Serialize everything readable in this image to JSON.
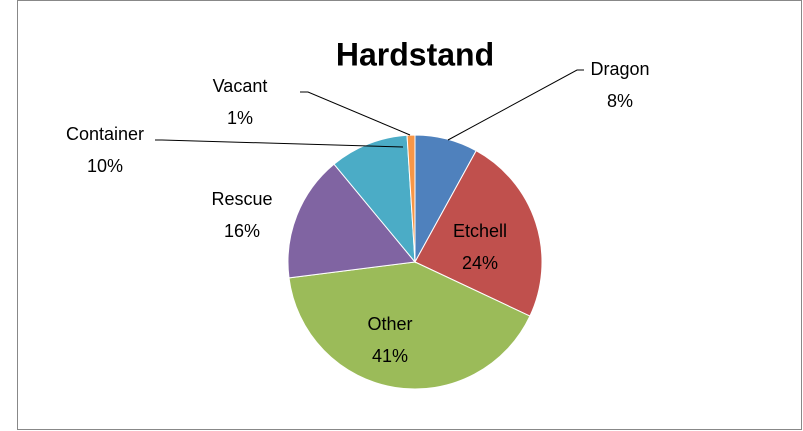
{
  "chart_data": {
    "type": "pie",
    "title": "Hardstand",
    "categories": [
      "Dragon",
      "Etchell",
      "Other",
      "Rescue",
      "Container",
      "Vacant"
    ],
    "values": [
      8,
      24,
      41,
      16,
      10,
      1
    ],
    "value_labels": [
      "8%",
      "24%",
      "41%",
      "16%",
      "10%",
      "1%"
    ],
    "colors": [
      "#4f81bd",
      "#c0504d",
      "#9bbb59",
      "#8064a2",
      "#4bacc6",
      "#f79646"
    ]
  }
}
